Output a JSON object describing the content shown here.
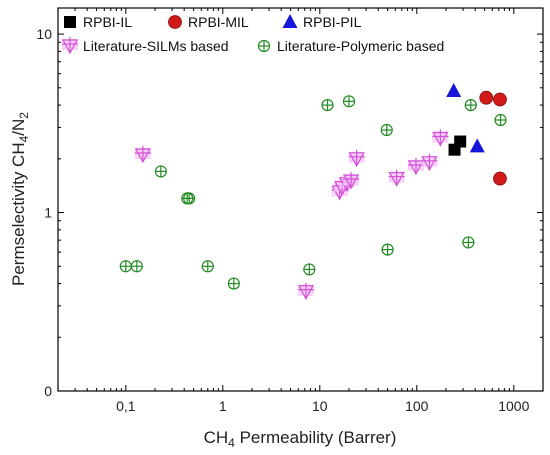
{
  "chart_data": {
    "type": "scatter",
    "x_scale": "log",
    "y_scale": "log",
    "xlim": [
      0.02,
      2000
    ],
    "ylim": [
      0.1,
      14
    ],
    "x_ticks": [
      {
        "value": 0.1,
        "label": "0,1"
      },
      {
        "value": 1,
        "label": "1"
      },
      {
        "value": 10,
        "label": "10"
      },
      {
        "value": 100,
        "label": "100"
      },
      {
        "value": 1000,
        "label": "1000"
      }
    ],
    "y_ticks": [
      {
        "value": 0.1,
        "label": "0"
      },
      {
        "value": 1,
        "label": "1"
      },
      {
        "value": 10,
        "label": "10"
      }
    ],
    "xlabel": {
      "prefix": "CH",
      "sub": "4",
      "suffix": " Permeability (Barrer)"
    },
    "ylabel": {
      "prefix": "Permselectivity CH",
      "sub": "4",
      "mid": "/N",
      "sub2": "2"
    },
    "legend_position": "top",
    "series": [
      {
        "name": "RPBI-IL",
        "marker": "square",
        "color": "#000000",
        "points": [
          [
            245,
            2.25
          ],
          [
            280,
            2.5
          ]
        ]
      },
      {
        "name": "RPBI-MIL",
        "marker": "circle",
        "color": "#d01a1a",
        "points": [
          [
            520,
            4.4
          ],
          [
            720,
            4.3
          ],
          [
            720,
            1.55
          ]
        ]
      },
      {
        "name": "RPBI-PIL",
        "marker": "triangle",
        "color": "#1616d8",
        "points": [
          [
            240,
            4.8
          ],
          [
            420,
            2.35
          ]
        ]
      },
      {
        "name": "Literature-SILMs based",
        "marker": "triangle-down-cross",
        "color": "#d24fd8",
        "points": [
          [
            0.15,
            2.1
          ],
          [
            7.2,
            0.36
          ],
          [
            16,
            1.3
          ],
          [
            17,
            1.38
          ],
          [
            19,
            1.45
          ],
          [
            21,
            1.5
          ],
          [
            24,
            2.0
          ],
          [
            62,
            1.55
          ],
          [
            98,
            1.8
          ],
          [
            135,
            1.9
          ],
          [
            175,
            2.6
          ]
        ]
      },
      {
        "name": "Literature-Polymeric based",
        "marker": "circle-cross",
        "color": "#228a22",
        "points": [
          [
            0.1,
            0.5
          ],
          [
            0.13,
            0.5
          ],
          [
            0.23,
            1.7
          ],
          [
            0.43,
            1.2
          ],
          [
            0.45,
            1.2
          ],
          [
            0.7,
            0.5
          ],
          [
            1.3,
            0.4
          ],
          [
            7.8,
            0.48
          ],
          [
            12,
            4.0
          ],
          [
            20,
            4.2
          ],
          [
            49,
            2.9
          ],
          [
            50,
            0.62
          ],
          [
            340,
            0.68
          ],
          [
            360,
            4.0
          ],
          [
            730,
            3.3
          ]
        ]
      }
    ]
  }
}
